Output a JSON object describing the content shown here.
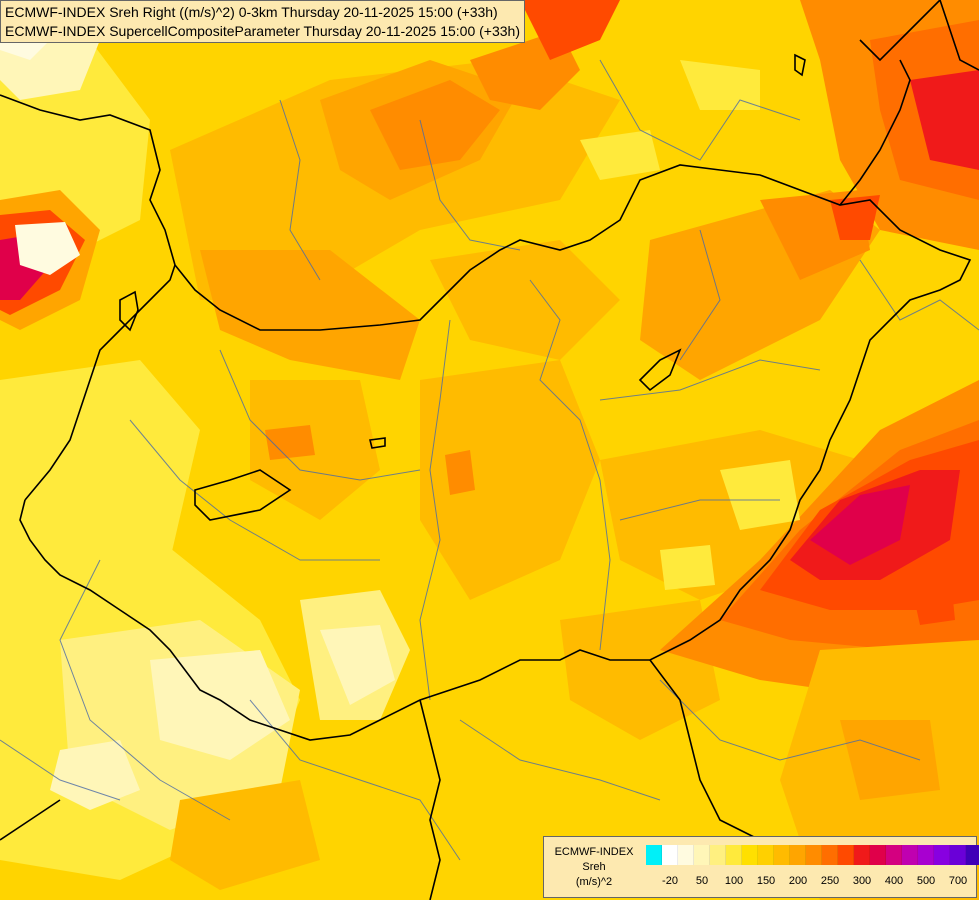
{
  "titles": {
    "line1": "ECMWF-INDEX Sreh Right ((m/s)^2) 0-3km Thursday 20-11-2025 15:00 (+33h)",
    "line2": "ECMWF-INDEX SupercellCompositeParameter Thursday 20-11-2025 15:00 (+33h)"
  },
  "legend": {
    "line1": "ECMWF-INDEX",
    "line2": "Sreh",
    "line3": "(m/s)^2",
    "colors": [
      "#00f0f8",
      "#ffffff",
      "#fffbe0",
      "#fff6b8",
      "#fff080",
      "#ffea3c",
      "#ffe000",
      "#ffd000",
      "#ffbb00",
      "#ffa500",
      "#ff8c00",
      "#ff6e00",
      "#ff4a00",
      "#f01a1a",
      "#e0004a",
      "#d40080",
      "#c000b0",
      "#a800d0",
      "#8800e0",
      "#6a00d8",
      "#4000b8",
      "#1a0090"
    ],
    "tick_labels": [
      "-20",
      "50",
      "100",
      "150",
      "200",
      "250",
      "300",
      "400",
      "500",
      "700"
    ]
  },
  "colors": {
    "field_base": "#ffd400",
    "border_national": "#000000",
    "border_regional": "#4a6aa6"
  }
}
